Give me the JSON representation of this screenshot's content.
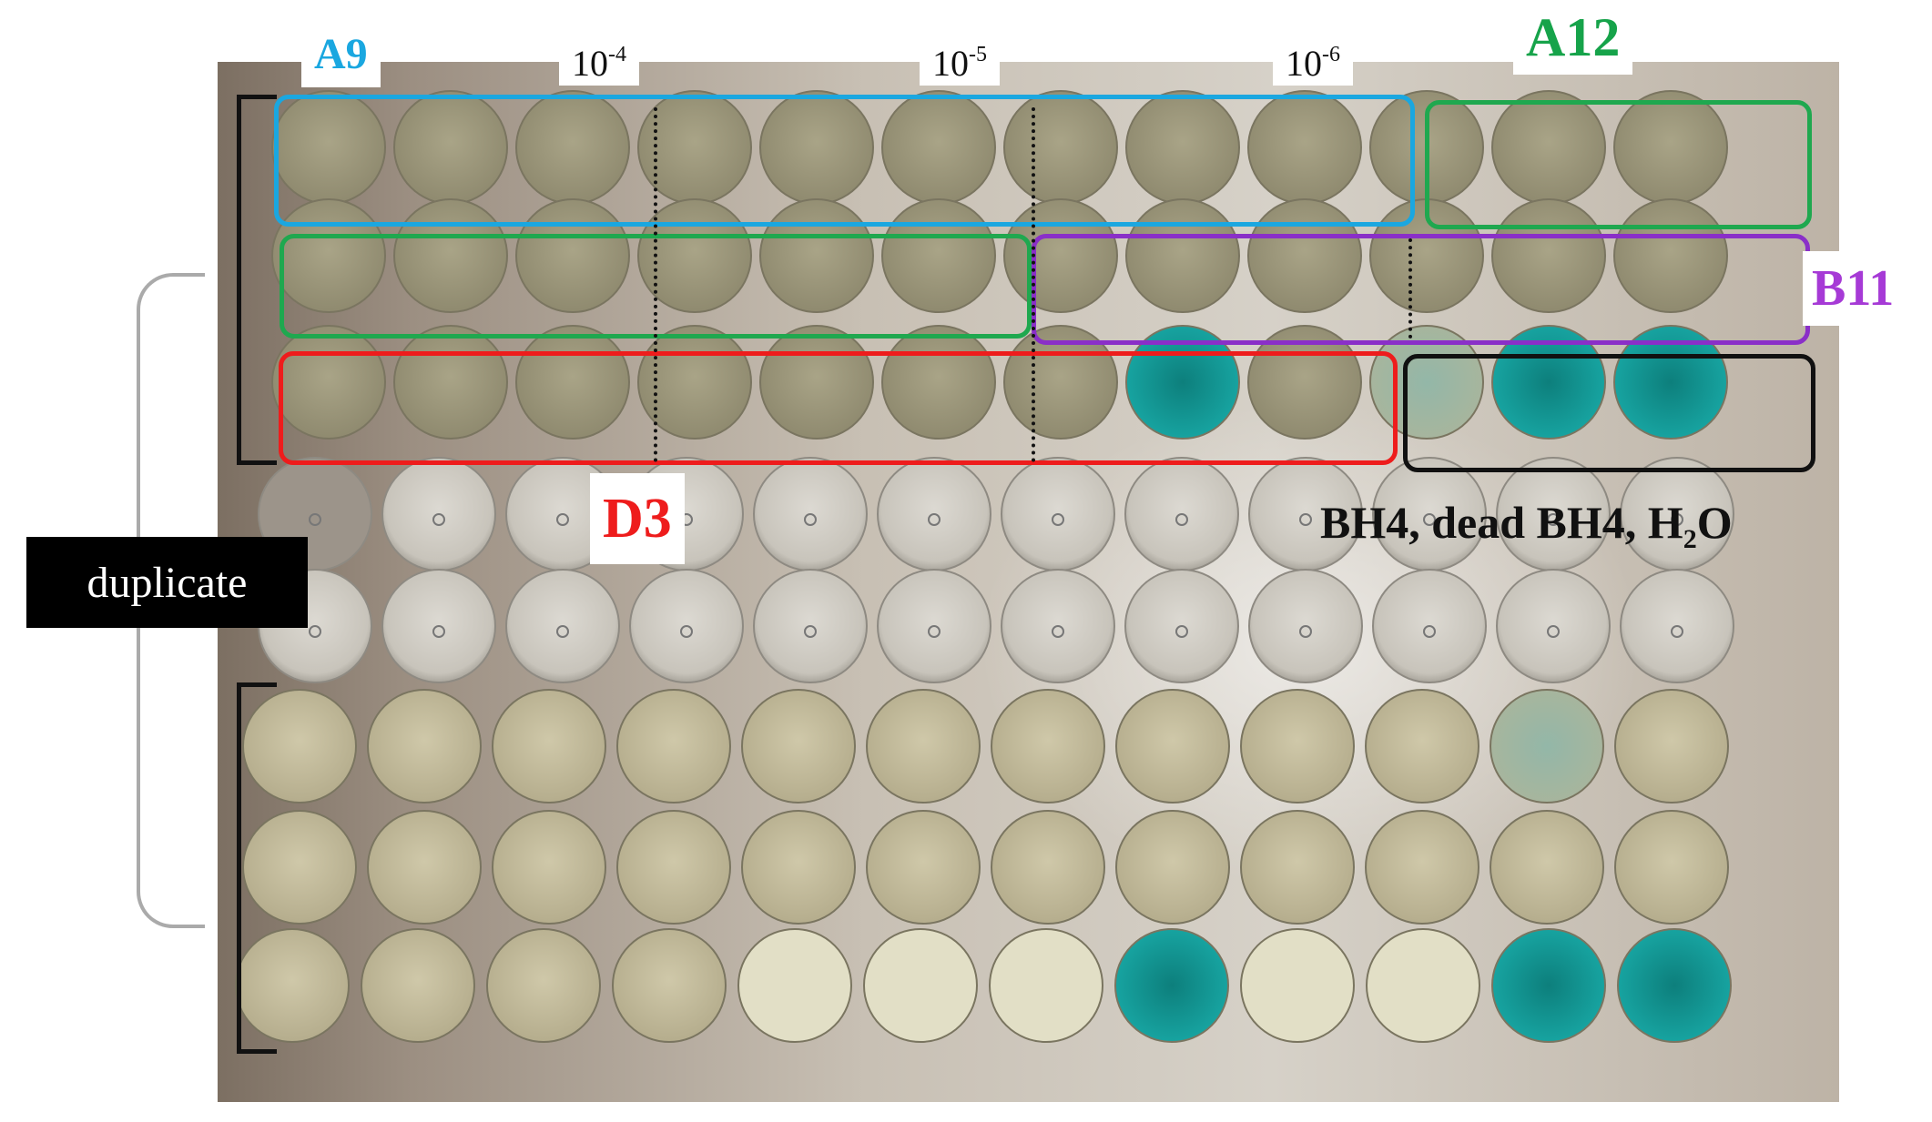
{
  "labels": {
    "strain_a9": "A9",
    "strain_a12": "A12",
    "strain_b11": "B11",
    "strain_d3": "D3",
    "dilution_1": {
      "base": "10",
      "exp": "-4"
    },
    "dilution_2": {
      "base": "10",
      "exp": "-5"
    },
    "dilution_3": {
      "base": "10",
      "exp": "-6"
    },
    "duplicate": "duplicate",
    "controls": {
      "part1": "BH4, dead BH4, H",
      "sub": "2",
      "part2": "O"
    }
  },
  "colors": {
    "a9_box": "#1aa7e0",
    "a12_box": "#1fa84f",
    "b11_box": "#8a2fc8",
    "d3_box": "#ee1c1c",
    "controls_box": "#111111",
    "blue_positive": "#0c8f8a",
    "a9_text": "#1aa7e0",
    "a12_text": "#16a34a",
    "b11_text": "#a63ad6",
    "d3_text": "#ee1c1c"
  },
  "plate": {
    "rows": 8,
    "cols": 12,
    "blue_wells_upper": [
      [
        3,
        8
      ],
      [
        3,
        11
      ],
      [
        3,
        12
      ]
    ],
    "faint_blue_wells_upper": [
      [
        3,
        10
      ]
    ],
    "blue_wells_lower": [
      [
        8,
        8
      ],
      [
        8,
        11
      ],
      [
        8,
        12
      ]
    ],
    "faint_blue_wells_lower": [
      [
        6,
        11
      ]
    ]
  }
}
